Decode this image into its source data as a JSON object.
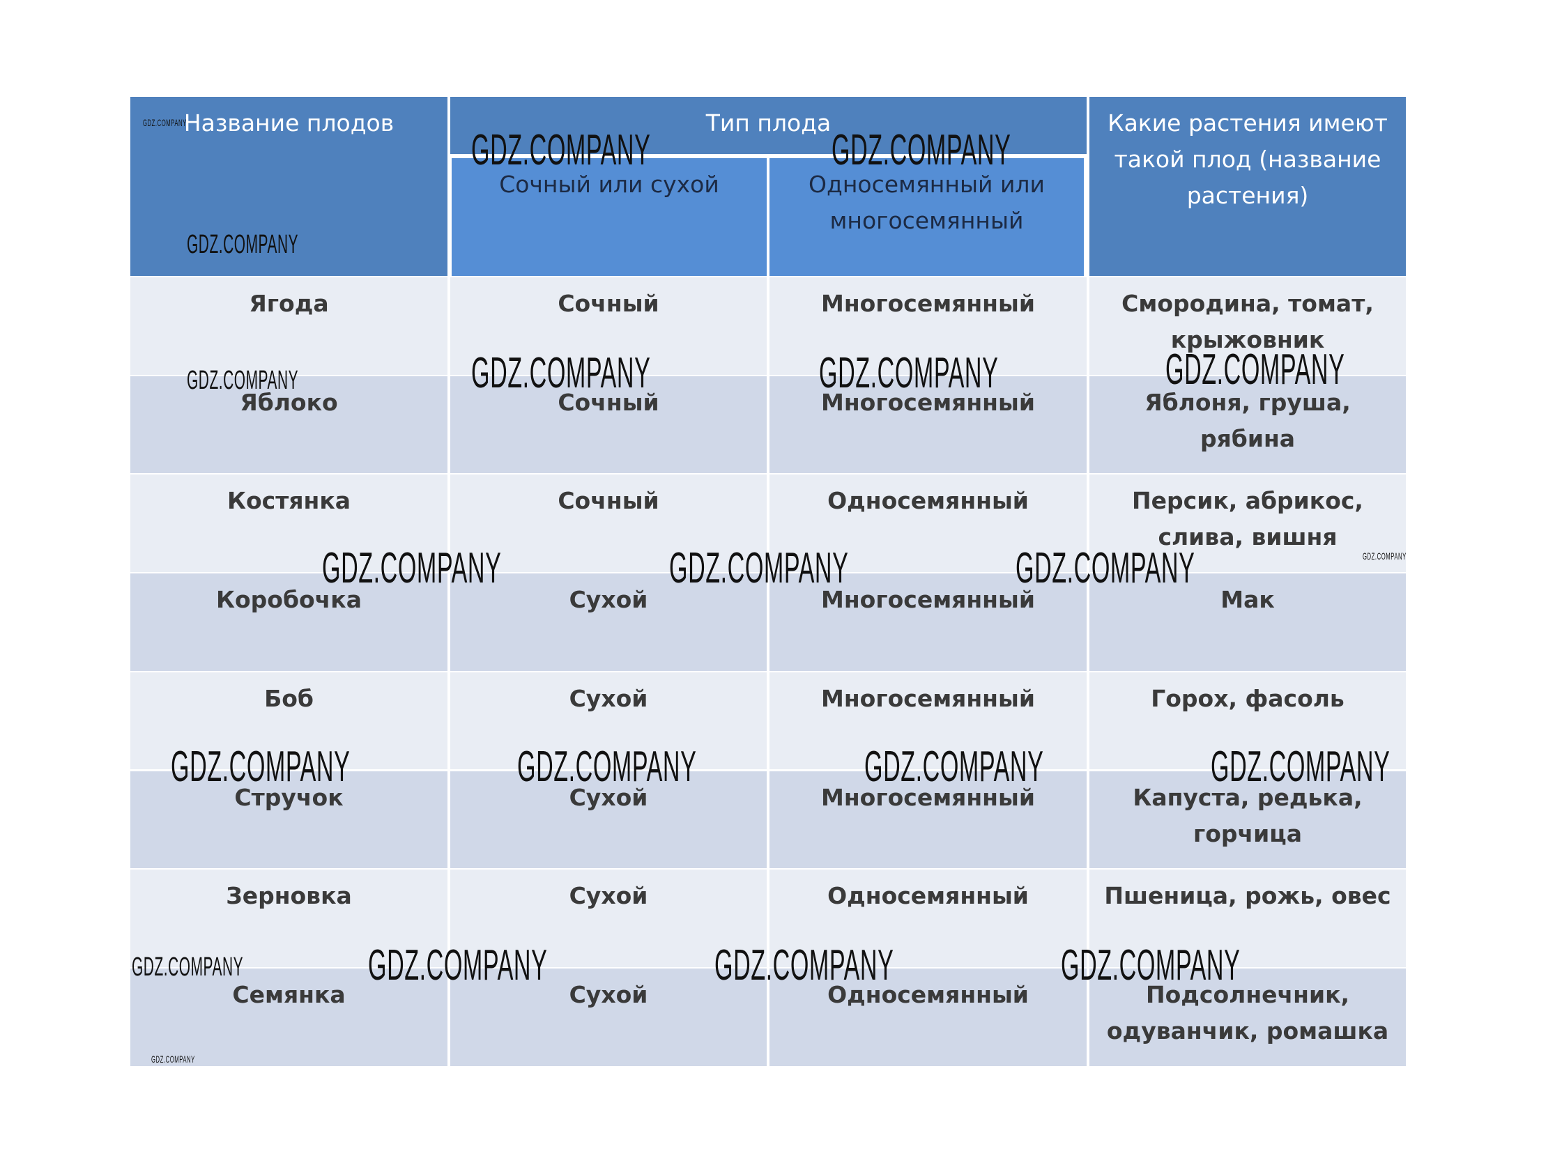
{
  "header": {
    "col1": "Название плодов",
    "group": "Тип плода",
    "sub1": "Сочный или сухой",
    "sub2": "Односемянный или многосемянный",
    "col4": "Какие растения имеют такой плод (название растения)"
  },
  "rows": [
    {
      "name": "Ягода",
      "type": "Сочный",
      "seeds": "Многосемянный",
      "plants": "Смородина, томат, крыжовник"
    },
    {
      "name": "Яблоко",
      "type": "Сочный",
      "seeds": "Многосемянный",
      "plants": "Яблоня, груша, рябина"
    },
    {
      "name": "Костянка",
      "type": "Сочный",
      "seeds": "Односемянный",
      "plants": "Персик, абрикос, слива, вишня"
    },
    {
      "name": "Коробочка",
      "type": "Сухой",
      "seeds": "Многосемянный",
      "plants": "Мак"
    },
    {
      "name": "Боб",
      "type": "Сухой",
      "seeds": "Многосемянный",
      "plants": "Горох, фасоль"
    },
    {
      "name": "Стручок",
      "type": "Сухой",
      "seeds": "Многосемянный",
      "plants": "Капуста, редька, горчица"
    },
    {
      "name": "Зерновка",
      "type": "Сухой",
      "seeds": "Односемянный",
      "plants": "Пшеница, рожь, овес"
    },
    {
      "name": "Семянка",
      "type": "Сухой",
      "seeds": "Односемянный",
      "plants": "Подсолнечник, одуванчик, ромашка"
    }
  ],
  "watermark": "GDZ.COMPANY",
  "colors": {
    "header": "#4f81bd",
    "subheader": "#558ed5",
    "row_light": "#e9edf4",
    "row_dark": "#d0d8e8"
  }
}
